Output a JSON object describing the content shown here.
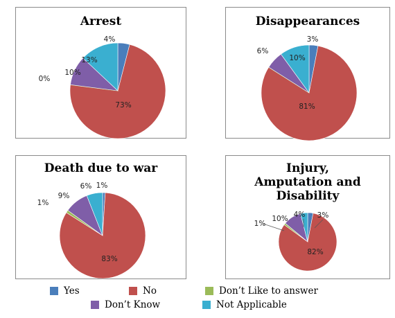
{
  "chart_data": [
    {
      "type": "pie",
      "title": "Arrest",
      "categories": [
        "Yes",
        "No",
        "Don’t Like to answer",
        "Don’t Know",
        "Not Applicable"
      ],
      "values": [
        4,
        73,
        0,
        10,
        13
      ],
      "labels": [
        "4%",
        "73%",
        "0%",
        "10%",
        "13%"
      ]
    },
    {
      "type": "pie",
      "title": "Disappearances",
      "categories": [
        "Yes",
        "No",
        "Don’t Like to answer",
        "Don’t Know",
        "Not Applicable"
      ],
      "values": [
        3,
        81,
        0,
        6,
        10
      ],
      "labels": [
        "3%",
        "81%",
        "",
        "6%",
        "10%"
      ]
    },
    {
      "type": "pie",
      "title": "Death due to war",
      "categories": [
        "Yes",
        "No",
        "Don’t Like to answer",
        "Don’t Know",
        "Not Applicable"
      ],
      "values": [
        1,
        83,
        1,
        9,
        6
      ],
      "labels": [
        "1%",
        "83%",
        "1%",
        "9%",
        "6%"
      ]
    },
    {
      "type": "pie",
      "title": "Injury,\nAmputation and\nDisability",
      "categories": [
        "Yes",
        "No",
        "Don’t Like to answer",
        "Don’t Know",
        "Not Applicable"
      ],
      "values": [
        3,
        82,
        1,
        10,
        4
      ],
      "labels": [
        "3%",
        "82%",
        "1%",
        "10%",
        "4%"
      ]
    }
  ],
  "legend": {
    "items": [
      {
        "label": "Yes",
        "color": "#4a7ebb"
      },
      {
        "label": "No",
        "color": "#c0504d"
      },
      {
        "label": "Don’t Like to answer",
        "color": "#9bbb59"
      },
      {
        "label": "Don’t Know",
        "color": "#7f5ea8"
      },
      {
        "label": "Not Applicable",
        "color": "#3aafd0"
      }
    ]
  },
  "colors": {
    "yes": "#4a7ebb",
    "no": "#c0504d",
    "dont_like": "#9bbb59",
    "dont_know": "#7f5ea8",
    "not_applicable": "#3aafd0"
  }
}
